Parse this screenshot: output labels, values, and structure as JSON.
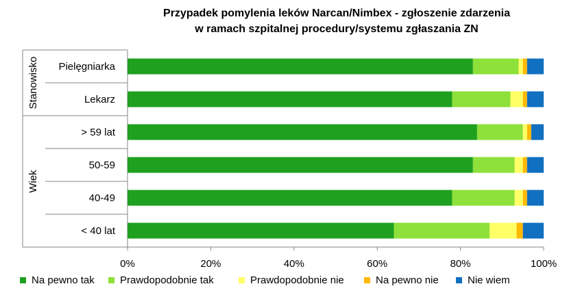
{
  "chart_data": {
    "type": "bar",
    "orientation": "horizontal",
    "stacked": true,
    "percent_stacked": true,
    "title": [
      "Przypadek pomylenia leków  Narcan/Nimbex - zgłoszenie zdarzenia",
      "w ramach  szpitalnej procedury/systemu zgłaszania ZN"
    ],
    "groups": [
      {
        "label": "Stanowisko",
        "categories": [
          "Pielęgniarka",
          "Lekarz"
        ]
      },
      {
        "label": "Wiek",
        "categories": [
          "> 59 lat",
          "50-59",
          "40-49",
          "< 40 lat"
        ]
      }
    ],
    "categories": [
      "Pielęgniarka",
      "Lekarz",
      "> 59 lat",
      "50-59",
      "40-49",
      "< 40 lat"
    ],
    "series": [
      {
        "name": "Na pewno tak",
        "color": "#1fa01f",
        "values": [
          83.0,
          78.0,
          84.0,
          83.0,
          78.0,
          64.0
        ]
      },
      {
        "name": "Prawdopodobnie tak",
        "color": "#8ee03a",
        "values": [
          11.0,
          14.0,
          11.0,
          10.0,
          15.0,
          23.0
        ]
      },
      {
        "name": "Prawdopodobnie nie",
        "color": "#ffff66",
        "values": [
          1.0,
          3.0,
          1.0,
          2.0,
          2.0,
          6.5
        ]
      },
      {
        "name": "Na pewno nie",
        "color": "#ffb800",
        "values": [
          1.0,
          1.0,
          1.0,
          1.0,
          1.0,
          1.5
        ]
      },
      {
        "name": "Nie wiem",
        "color": "#1170c0",
        "values": [
          4.0,
          4.0,
          3.0,
          4.0,
          4.0,
          5.0
        ]
      }
    ],
    "xlim": [
      0,
      100
    ],
    "xticks": [
      "0%",
      "20%",
      "40%",
      "60%",
      "80%",
      "100%"
    ],
    "grid": false,
    "legend": "bottom"
  }
}
